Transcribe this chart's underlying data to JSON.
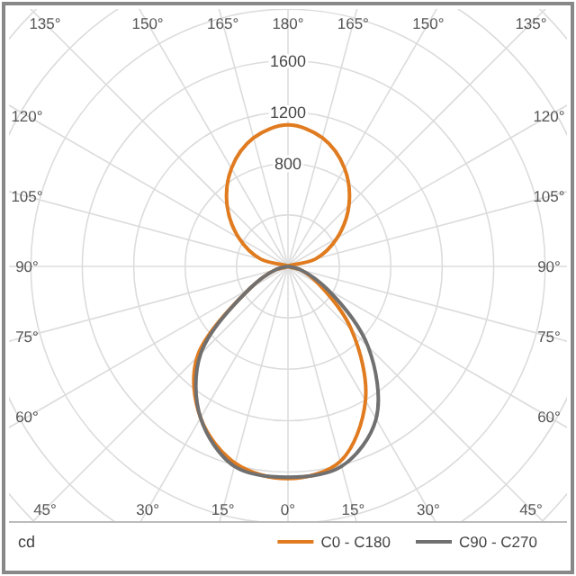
{
  "chart_data": {
    "type": "radar",
    "ylabel": "cd",
    "categories": [
      "180°",
      "165°",
      "150°",
      "135°",
      "120°",
      "105°",
      "90°",
      "75°",
      "60°",
      "45°",
      "30°",
      "15°",
      "0°",
      "15°",
      "30°",
      "45°",
      "60°",
      "75°",
      "90°",
      "105°",
      "120°",
      "135°",
      "150°",
      "165°"
    ],
    "series": [
      {
        "name": "C0 - C180",
        "color": "#e07b1f",
        "values": [
          1100,
          1035,
          880,
          670,
          440,
          220,
          0,
          100,
          280,
          700,
          1205,
          1570,
          1650,
          1585,
          1360,
          1000,
          340,
          100,
          0,
          220,
          440,
          670,
          880,
          1035
        ]
      },
      {
        "name": "C90 - C270",
        "color": "#707070",
        "values": [
          0,
          0,
          0,
          0,
          0,
          0,
          0,
          100,
          350,
          880,
          1370,
          1610,
          1640,
          1610,
          1360,
          960,
          340,
          100,
          0,
          0,
          0,
          0,
          0,
          0
        ]
      }
    ],
    "ylim": [
      0,
      2800
    ],
    "yticks": [
      800,
      1200,
      1600
    ],
    "grid": true,
    "legend": "bottom right"
  }
}
